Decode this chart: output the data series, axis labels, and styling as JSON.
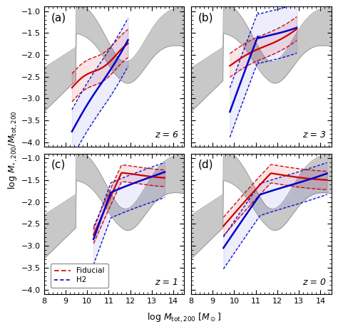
{
  "panels": [
    "(a)",
    "(b)",
    "(c)",
    "(d)"
  ],
  "redshifts": [
    "z=6",
    "z=3",
    "z=1",
    "z=0"
  ],
  "xlim": [
    8,
    14.5
  ],
  "ylim": [
    -4.1,
    -0.9
  ],
  "xticks": [
    8,
    9,
    10,
    11,
    12,
    13,
    14
  ],
  "yticks": [
    -4.0,
    -3.5,
    -3.0,
    -2.5,
    -2.0,
    -1.5,
    -1.0
  ],
  "fiducial_color": "#CC0000",
  "h2_color": "#0000CC",
  "gray_fill": "#C8C8C8",
  "gray_edge": "#888888",
  "background": "#FFFFFF",
  "panel_label_fontsize": 11,
  "axis_label_fontsize": 9,
  "tick_fontsize": 8
}
